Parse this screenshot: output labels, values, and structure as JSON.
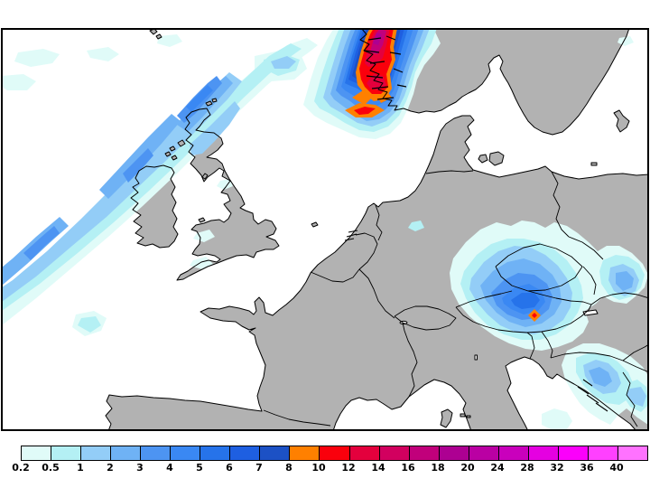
{
  "window": {
    "background": "#ffffff"
  },
  "map": {
    "frame_color": "#000000",
    "sea_color": "#ffffff",
    "land_color": "#b2b2b2",
    "coastline_color": "#000000"
  },
  "legend": {
    "tick_labels": [
      "0.2",
      "0.5",
      "1",
      "2",
      "3",
      "4",
      "5",
      "6",
      "7",
      "8",
      "10",
      "12",
      "14",
      "16",
      "18",
      "20",
      "24",
      "28",
      "32",
      "36",
      "40"
    ],
    "segment_colors": [
      "#e0fbf8",
      "#b4f0f4",
      "#93cdf7",
      "#6fb2f5",
      "#4d94f2",
      "#3a88f3",
      "#2673ea",
      "#1e5fe1",
      "#1c51c5",
      "#ff8000",
      "#fa000c",
      "#e4003d",
      "#d2005f",
      "#c1007b",
      "#ad0092",
      "#ba00a3",
      "#c900bc",
      "#e500e1",
      "#fb00fb",
      "#ff40ff",
      "#ff72ff"
    ]
  },
  "chart_data": {
    "type": "heatmap",
    "title": "",
    "legend_ticks": [
      0.2,
      0.5,
      1,
      2,
      3,
      4,
      5,
      6,
      7,
      8,
      10,
      12,
      14,
      16,
      18,
      20,
      24,
      28,
      32,
      36,
      40
    ],
    "legend_position": "bottom",
    "precipitation_areas": [
      {
        "name": "north-atlantic-band",
        "location": "diagonal band from lower-left across Scotland/Ireland",
        "max_band": "3-5"
      },
      {
        "name": "norwegian-coast-cell",
        "location": "west coast of Norway, top centre",
        "max_band": "18-20"
      },
      {
        "name": "norwegian-coast-satellite-spots",
        "location": "just southwest of main cell",
        "max_band": "10-12"
      },
      {
        "name": "alps-cell",
        "location": "Austria / eastern Alps",
        "max_band": "10-12 (single spot)"
      },
      {
        "name": "pannonian-patch",
        "location": "Hungary/Slovakia area",
        "max_band": "2-3"
      },
      {
        "name": "balkans-patches",
        "location": "bottom right, Dinarides",
        "max_band": "2-3"
      },
      {
        "name": "scattered-light-showers",
        "location": "Bay of Biscay, North Sea, north Germany",
        "max_band": "0.5-1"
      }
    ]
  }
}
